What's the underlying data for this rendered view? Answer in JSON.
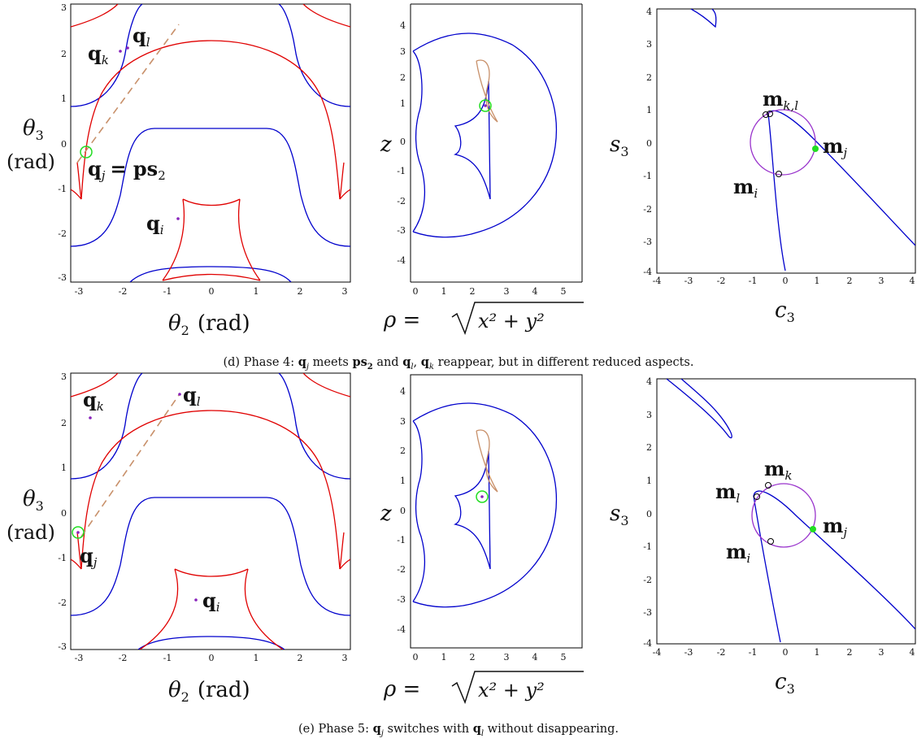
{
  "captions": {
    "top": [
      "(d) Phase 4: ",
      "q",
      "j",
      " meets ",
      "ps",
      "2",
      " and ",
      "q",
      "l",
      ", ",
      "q",
      "k",
      " reappear, but in different reduced aspects."
    ],
    "bottom": [
      "(e) Phase 5: ",
      "q",
      "j",
      " switches with ",
      "q",
      "l",
      " without disappearing."
    ]
  },
  "axis_labels": {
    "theta3": "θ",
    "theta3_sub": "3",
    "rad": "(rad)",
    "theta2": "θ",
    "theta2_sub": "2",
    "theta2_rad": "(rad)",
    "z": "z",
    "rho": "ρ =",
    "rho_sqrt": "x² + y²",
    "s3": "s",
    "s3_sub": "3",
    "c3": "c",
    "c3_sub": "3"
  },
  "ticks": {
    "joint_x": [
      "-3",
      "-2",
      "-1",
      "0",
      "1",
      "2",
      "3"
    ],
    "joint_y": [
      "3",
      "2",
      "1",
      "0",
      "-1",
      "-2",
      "-3"
    ],
    "work_x": [
      "0",
      "1",
      "2",
      "3",
      "4",
      "5"
    ],
    "work_y": [
      "4",
      "3",
      "2",
      "1",
      "0",
      "-1",
      "-2",
      "-3",
      "-4"
    ],
    "param_x": [
      "-4",
      "-3",
      "-2",
      "-1",
      "0",
      "1",
      "2",
      "3",
      "4"
    ],
    "param_y": [
      "4",
      "3",
      "2",
      "1",
      "0",
      "-1",
      "-2",
      "-3",
      "-4"
    ]
  },
  "labels_d": {
    "qk": "q",
    "qk_sub": "k",
    "ql": "q",
    "ql_sub": "l",
    "qj": "q",
    "qj_sub": "j",
    "ps": "= ps",
    "ps_sub": "2",
    "qi": "q",
    "qi_sub": "i",
    "mkl": "m",
    "mkl_sub": "k,l",
    "mj": "m",
    "mj_sub": "j",
    "mi": "m",
    "mi_sub": "i"
  },
  "labels_e": {
    "qk": "q",
    "qk_sub": "k",
    "ql": "q",
    "ql_sub": "l",
    "qj": "q",
    "qj_sub": "j",
    "qi": "q",
    "qi_sub": "i",
    "mk": "m",
    "mk_sub": "k",
    "ml": "m",
    "ml_sub": "l",
    "mj": "m",
    "mj_sub": "j",
    "mi": "m",
    "mi_sub": "i"
  },
  "colors": {
    "singular_red": "#e00000",
    "boundary_blue": "#0000cc",
    "dashed_line": "#c8906a",
    "circle_green": "#22dd22",
    "circle_purple": "#9933cc",
    "point_purple": "#8822bb"
  }
}
